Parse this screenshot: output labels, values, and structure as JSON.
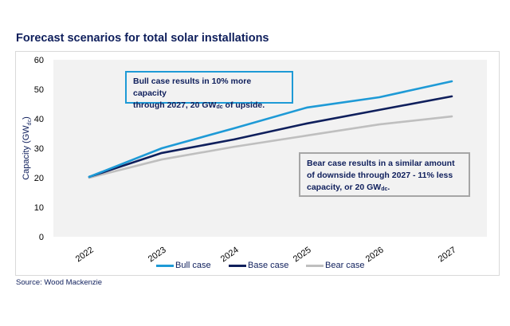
{
  "chart_data": {
    "type": "line",
    "title": "Forecast scenarios for total solar installations",
    "xlabel": "",
    "ylabel": "Capacity (GWdc)",
    "ylabel_main": "Capacity (GW",
    "ylabel_sub": "dc",
    "ylabel_end": ")",
    "ylim": [
      0,
      60
    ],
    "yticks": [
      0,
      10,
      20,
      30,
      40,
      50,
      60
    ],
    "categories": [
      "2022",
      "2023",
      "2024",
      "2025",
      "2026",
      "2027"
    ],
    "grid": false,
    "legend_position": "bottom",
    "series": [
      {
        "name": "Bull case",
        "color": "#1e9ad6",
        "values": [
          20.3,
          30.0,
          36.8,
          43.8,
          47.3,
          52.7
        ]
      },
      {
        "name": "Base case",
        "color": "#0f1f5c",
        "values": [
          20.3,
          28.4,
          33.0,
          38.4,
          43.0,
          47.6
        ]
      },
      {
        "name": "Bear case",
        "color": "#bfbfbf",
        "values": [
          20.0,
          26.2,
          30.5,
          34.3,
          38.1,
          40.8
        ]
      }
    ],
    "annotations": [
      {
        "id": "bull",
        "text_lines": [
          "Bull case results in 10% more capacity",
          "through 2027, 20 GW",
          "dc",
          " of upside."
        ]
      },
      {
        "id": "bear",
        "text_lines": [
          "Bear case results in a similar amount",
          "of downside through 2027 - 11% less",
          "capacity, or 20 GW",
          "dc",
          "."
        ]
      }
    ]
  },
  "title": "Forecast scenarios for total solar installations",
  "annotations": {
    "bull": {
      "line1": "Bull case results in 10% more capacity",
      "line2_pre": "through 2027, 20 GW",
      "line2_sub": "dc",
      "line2_post": " of upside."
    },
    "bear": {
      "line1": "Bear case results in a similar amount",
      "line2": "of downside through 2027 - 11% less",
      "line3_pre": "capacity, or 20 GW",
      "line3_sub": "dc",
      "line3_post": "."
    }
  },
  "legend": [
    "Bull case",
    "Base case",
    "Bear case"
  ],
  "source": "Source: Wood Mackenzie"
}
